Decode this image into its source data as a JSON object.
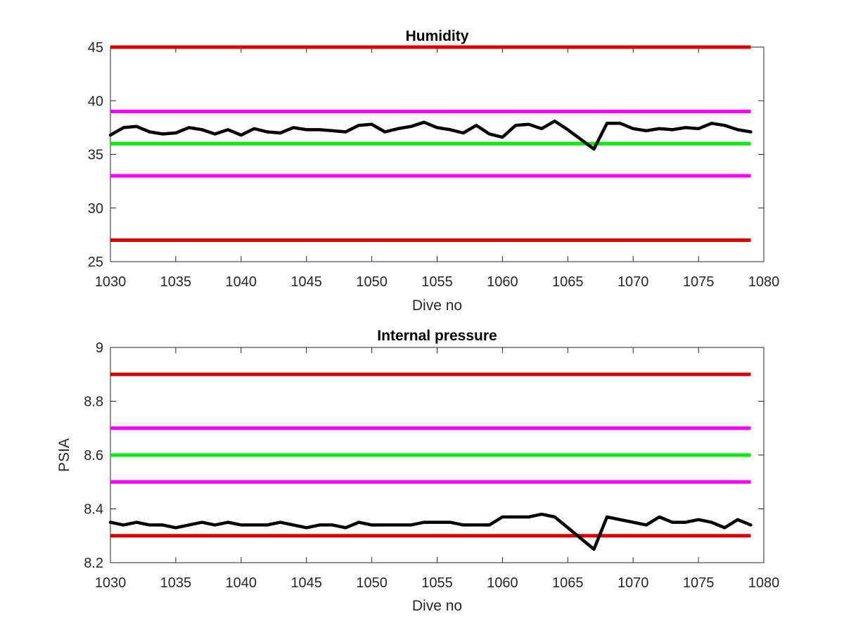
{
  "chart_data": [
    {
      "type": "line",
      "title": "Humidity",
      "xlabel": "Dive no",
      "ylabel": "",
      "xlim": [
        1030,
        1080
      ],
      "ylim": [
        25,
        45
      ],
      "xticks": [
        1030,
        1035,
        1040,
        1045,
        1050,
        1055,
        1060,
        1065,
        1070,
        1075,
        1080
      ],
      "yticks": [
        25,
        30,
        35,
        40,
        45
      ],
      "grid": false,
      "reference_lines": [
        {
          "y": 45,
          "color": "#dd0000"
        },
        {
          "y": 39,
          "color": "#ff00ff"
        },
        {
          "y": 36,
          "color": "#00ee00"
        },
        {
          "y": 33,
          "color": "#ff00ff"
        },
        {
          "y": 27,
          "color": "#dd0000"
        }
      ],
      "series": [
        {
          "color": "#000000",
          "x": [
            1030,
            1031,
            1032,
            1033,
            1034,
            1035,
            1036,
            1037,
            1038,
            1039,
            1040,
            1041,
            1042,
            1043,
            1044,
            1045,
            1046,
            1047,
            1048,
            1049,
            1050,
            1051,
            1052,
            1053,
            1054,
            1055,
            1056,
            1057,
            1058,
            1059,
            1060,
            1061,
            1062,
            1063,
            1064,
            1065,
            1066,
            1067,
            1068,
            1069,
            1070,
            1071,
            1072,
            1073,
            1074,
            1075,
            1076,
            1077,
            1078,
            1079
          ],
          "y": [
            36.8,
            37.5,
            37.6,
            37.1,
            36.9,
            37.0,
            37.5,
            37.3,
            36.9,
            37.3,
            36.8,
            37.4,
            37.1,
            37.0,
            37.5,
            37.3,
            37.3,
            37.2,
            37.1,
            37.7,
            37.8,
            37.1,
            37.4,
            37.6,
            38.0,
            37.5,
            37.3,
            37.0,
            37.7,
            36.9,
            36.6,
            37.7,
            37.8,
            37.4,
            38.1,
            37.3,
            36.4,
            35.5,
            37.9,
            37.9,
            37.4,
            37.2,
            37.4,
            37.3,
            37.5,
            37.4,
            37.9,
            37.7,
            37.3,
            37.1
          ]
        }
      ]
    },
    {
      "type": "line",
      "title": "Internal pressure",
      "xlabel": "Dive no",
      "ylabel": "PSIA",
      "xlim": [
        1030,
        1080
      ],
      "ylim": [
        8.2,
        9
      ],
      "xticks": [
        1030,
        1035,
        1040,
        1045,
        1050,
        1055,
        1060,
        1065,
        1070,
        1075,
        1080
      ],
      "yticks": [
        8.2,
        8.4,
        8.6,
        8.8,
        9
      ],
      "grid": false,
      "reference_lines": [
        {
          "y": 8.9,
          "color": "#dd0000"
        },
        {
          "y": 8.7,
          "color": "#ff00ff"
        },
        {
          "y": 8.6,
          "color": "#00ee00"
        },
        {
          "y": 8.5,
          "color": "#ff00ff"
        },
        {
          "y": 8.3,
          "color": "#dd0000"
        }
      ],
      "series": [
        {
          "color": "#000000",
          "x": [
            1030,
            1031,
            1032,
            1033,
            1034,
            1035,
            1036,
            1037,
            1038,
            1039,
            1040,
            1041,
            1042,
            1043,
            1044,
            1045,
            1046,
            1047,
            1048,
            1049,
            1050,
            1051,
            1052,
            1053,
            1054,
            1055,
            1056,
            1057,
            1058,
            1059,
            1060,
            1061,
            1062,
            1063,
            1064,
            1065,
            1066,
            1067,
            1068,
            1069,
            1070,
            1071,
            1072,
            1073,
            1074,
            1075,
            1076,
            1077,
            1078,
            1079
          ],
          "y": [
            8.35,
            8.34,
            8.35,
            8.34,
            8.34,
            8.33,
            8.34,
            8.35,
            8.34,
            8.35,
            8.34,
            8.34,
            8.34,
            8.35,
            8.34,
            8.33,
            8.34,
            8.34,
            8.33,
            8.35,
            8.34,
            8.34,
            8.34,
            8.34,
            8.35,
            8.35,
            8.35,
            8.34,
            8.34,
            8.34,
            8.37,
            8.37,
            8.37,
            8.38,
            8.37,
            8.33,
            8.29,
            8.25,
            8.37,
            8.36,
            8.35,
            8.34,
            8.37,
            8.35,
            8.35,
            8.36,
            8.35,
            8.33,
            8.36,
            8.34
          ]
        }
      ]
    }
  ]
}
